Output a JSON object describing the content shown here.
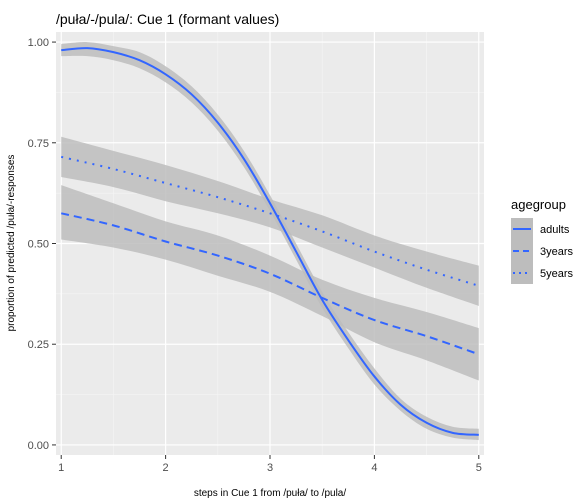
{
  "chart_data": {
    "type": "line",
    "title": "/puła/-/pula/: Cue 1 (formant values)",
    "xlabel": "steps in Cue 1 from /puła/ to /pula/",
    "ylabel": "proportion of predicted /puła/-responses",
    "x_ticks": [
      "1",
      "2",
      "3",
      "4",
      "5"
    ],
    "y_ticks": [
      "0.00",
      "0.25",
      "0.50",
      "0.75",
      "1.00"
    ],
    "xlim": [
      0.95,
      5.05
    ],
    "ylim": [
      -0.025,
      1.025
    ],
    "grid": true,
    "legend": {
      "title": "agegroup",
      "position": "right"
    },
    "line_color": "#3366ff",
    "band_color": "#bdbdbd",
    "panel_background": "#ebebeb",
    "series": [
      {
        "name": "adults",
        "linetype": "solid",
        "x": [
          1,
          1.25,
          1.5,
          1.75,
          2,
          2.25,
          2.5,
          2.75,
          3,
          3.25,
          3.5,
          3.75,
          4,
          4.25,
          4.5,
          4.75,
          5
        ],
        "y": [
          0.98,
          0.985,
          0.975,
          0.955,
          0.92,
          0.87,
          0.8,
          0.71,
          0.6,
          0.48,
          0.36,
          0.26,
          0.17,
          0.1,
          0.055,
          0.03,
          0.025
        ],
        "lower": [
          0.965,
          0.965,
          0.955,
          0.935,
          0.9,
          0.85,
          0.78,
          0.69,
          0.58,
          0.46,
          0.34,
          0.24,
          0.15,
          0.085,
          0.04,
          0.018,
          0.012
        ],
        "upper": [
          0.995,
          1.0,
          0.99,
          0.975,
          0.94,
          0.89,
          0.82,
          0.73,
          0.62,
          0.5,
          0.38,
          0.28,
          0.19,
          0.115,
          0.07,
          0.045,
          0.04
        ]
      },
      {
        "name": "3years",
        "linetype": "dashed",
        "x": [
          1,
          1.5,
          2,
          2.5,
          3,
          3.5,
          4,
          4.5,
          5
        ],
        "y": [
          0.575,
          0.545,
          0.505,
          0.47,
          0.425,
          0.365,
          0.31,
          0.27,
          0.225
        ],
        "lower": [
          0.51,
          0.49,
          0.46,
          0.42,
          0.38,
          0.32,
          0.255,
          0.21,
          0.16
        ],
        "upper": [
          0.645,
          0.6,
          0.555,
          0.52,
          0.47,
          0.41,
          0.365,
          0.33,
          0.29
        ]
      },
      {
        "name": "5years",
        "linetype": "dotted",
        "x": [
          1,
          1.5,
          2,
          2.5,
          3,
          3.5,
          4,
          4.5,
          5
        ],
        "y": [
          0.715,
          0.685,
          0.65,
          0.615,
          0.575,
          0.53,
          0.48,
          0.435,
          0.395
        ],
        "lower": [
          0.665,
          0.64,
          0.605,
          0.575,
          0.54,
          0.49,
          0.44,
          0.39,
          0.345
        ],
        "upper": [
          0.765,
          0.73,
          0.695,
          0.655,
          0.61,
          0.57,
          0.52,
          0.48,
          0.445
        ]
      }
    ]
  }
}
